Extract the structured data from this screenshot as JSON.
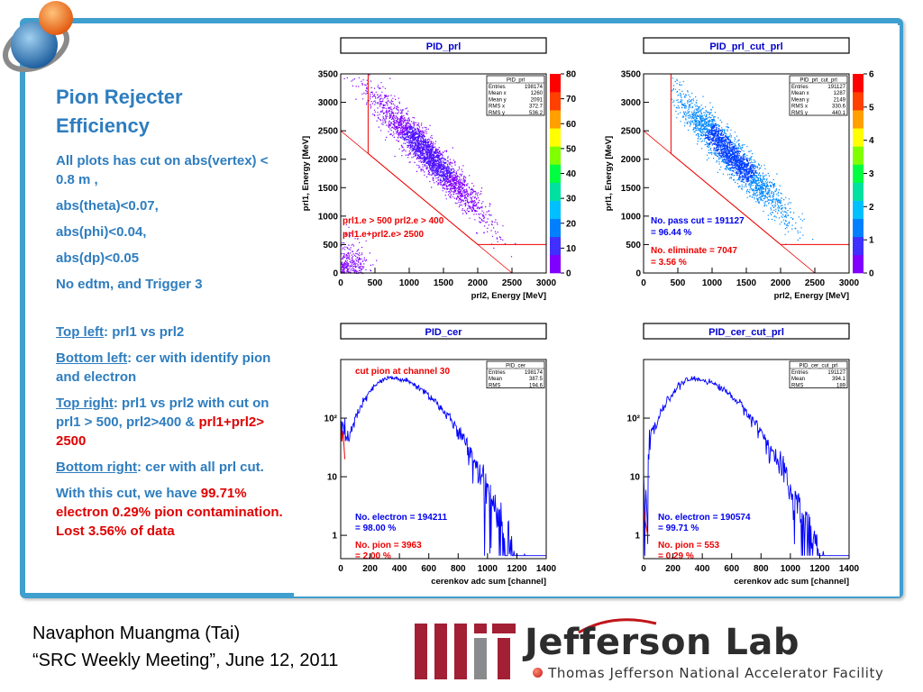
{
  "slide": {
    "title": "Pion Rejecter Efficiency",
    "text_lines": [
      "All plots has cut on abs(vertex) < 0.8 m ,",
      "abs(theta)<0.07,",
      "abs(phi)<0.04,",
      "abs(dp)<0.05",
      "No edtm, and Trigger 3"
    ],
    "desc": {
      "top_left_label": "Top left",
      "top_left_text": ": prl1 vs prl2",
      "bottom_left_label": "Bottom left",
      "bottom_left_text": ":  cer with identify pion and electron",
      "top_right_label": "Top right",
      "top_right_text": ": prl1 vs prl2 with cut on prl1 > 500, prl2>400 &",
      "top_right_red": "prl1+prl2> 2500",
      "bottom_right_label": "Bottom right",
      "bottom_right_text": ": cer with all prl cut.",
      "conclusion_text": "With this cut, we have",
      "conclusion_red": "99.71% electron 0.29% pion contamination. Lost 3.56% of data"
    }
  },
  "footer": {
    "author": "Navaphon Muangma (Tai)",
    "meeting": "“SRC Weekly Meeting”, June 12, 2011",
    "lab_name": "Jefferson Lab",
    "lab_subtitle": "Thomas Jefferson National Accelerator Facility"
  },
  "colors": {
    "frame": "#3f9fcf",
    "title": "#2e7dbf",
    "red": "#e00000",
    "hist": "#0000ff"
  },
  "chart_data": [
    {
      "type": "heatmap",
      "title": "PID_prl",
      "xlabel": "prl2, Energy [MeV]",
      "ylabel": "prl1, Energy [MeV]",
      "xlim": [
        0,
        3000
      ],
      "ylim": [
        0,
        3500
      ],
      "x_ticks": [
        "0",
        "500",
        "1000",
        "1500",
        "2000",
        "2500",
        "3000"
      ],
      "y_ticks": [
        "0",
        "500",
        "1000",
        "1500",
        "2000",
        "2500",
        "3000",
        "3500"
      ],
      "z_ticks": [
        "0",
        "10",
        "20",
        "30",
        "40",
        "50",
        "60",
        "70",
        "80"
      ],
      "stats": [
        [
          "Entries",
          "198174"
        ],
        [
          "Mean x",
          "1260"
        ],
        [
          "Mean y",
          "2091"
        ],
        [
          "RMS x",
          "372.7"
        ],
        [
          "RMS y",
          "536.2"
        ]
      ],
      "annotations": [
        "prl1.e > 500 prl2.e > 400",
        "prl1.e+prl2.e> 2500"
      ]
    },
    {
      "type": "heatmap",
      "title": "PID_prl_cut_prl",
      "xlabel": "prl2, Energy [MeV]",
      "ylabel": "prl1, Energy [MeV]",
      "xlim": [
        0,
        3000
      ],
      "ylim": [
        0,
        3500
      ],
      "x_ticks": [
        "0",
        "500",
        "1000",
        "1500",
        "2000",
        "2500",
        "3000"
      ],
      "y_ticks": [
        "0",
        "500",
        "1000",
        "1500",
        "2000",
        "2500",
        "3000",
        "3500"
      ],
      "z_ticks": [
        "0",
        "1",
        "2",
        "3",
        "4",
        "5",
        "6"
      ],
      "stats": [
        [
          "Entries",
          "191127"
        ],
        [
          "Mean x",
          "1287"
        ],
        [
          "Mean y",
          "2149"
        ],
        [
          "RMS x",
          "330.6"
        ],
        [
          "RMS y",
          "440.1"
        ]
      ],
      "annotations": [
        "No. pass cut = 191127",
        " = 96.44 %",
        "No. eliminate = 7047",
        " = 3.56 %"
      ]
    },
    {
      "type": "line",
      "title": "PID_cer",
      "xlabel": "cerenkov adc sum [channel]",
      "ylabel": "",
      "xlim": [
        0,
        1400
      ],
      "log_y": true,
      "x_ticks": [
        "0",
        "200",
        "400",
        "600",
        "800",
        "1000",
        "1200",
        "1400"
      ],
      "y_ticks": [
        "1",
        "10",
        "10²"
      ],
      "stats": [
        [
          "Entries",
          "198174"
        ],
        [
          "Mean",
          "387.5"
        ],
        [
          "RMS",
          "194.6"
        ]
      ],
      "annotations": [
        "cut pion at channel 30",
        "No. electron = 194211",
        " = 98.00 %",
        "No. pion = 3963",
        " = 2.00 %"
      ]
    },
    {
      "type": "line",
      "title": "PID_cer_cut_prl",
      "xlabel": "cerenkov adc sum [channel]",
      "ylabel": "",
      "xlim": [
        0,
        1400
      ],
      "log_y": true,
      "x_ticks": [
        "0",
        "200",
        "400",
        "600",
        "800",
        "1000",
        "1200",
        "1400"
      ],
      "y_ticks": [
        "1",
        "10",
        "10²"
      ],
      "stats": [
        [
          "Entries",
          "191127"
        ],
        [
          "Mean",
          "394.1"
        ],
        [
          "RMS",
          "189"
        ]
      ],
      "annotations": [
        "No. electron = 190574",
        " = 99.71 %",
        "No. pion = 553",
        " = 0.29 %"
      ]
    }
  ]
}
